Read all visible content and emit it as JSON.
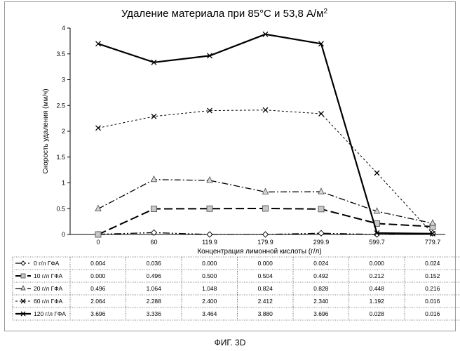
{
  "figure_caption": "ФИГ. 3D",
  "chart_data": {
    "type": "line",
    "title": "Удаление материала при 85°С и 53,8 А/м",
    "title_superscript": "2",
    "xlabel": "Концентрация лимонной кислоты (г/л)",
    "ylabel": "Скорость удаления (мм/ч)",
    "categories": [
      "0",
      "60",
      "119.9",
      "179.9",
      "299.9",
      "599.7",
      "779.7"
    ],
    "ylim": [
      0,
      4
    ],
    "yticks": [
      "0",
      "0.5",
      "1",
      "1.5",
      "2",
      "2.5",
      "3",
      "3.5",
      "4"
    ],
    "grid": false,
    "legend": "data-table-below",
    "series": [
      {
        "name": "0 г/л ГФА",
        "marker": "diamond",
        "dash": "long-dot-dot",
        "color": "#000000",
        "values": [
          0.004,
          0.036,
          0.0,
          0.0,
          0.024,
          0.0,
          0.024
        ],
        "labels": [
          "0.004",
          "0.036",
          "0.000",
          "0.000",
          "0.024",
          "0.000",
          "0.024"
        ]
      },
      {
        "name": "10 г/л ГФА",
        "marker": "square",
        "dash": "long-dash",
        "color": "#000000",
        "values": [
          0.0,
          0.496,
          0.5,
          0.504,
          0.492,
          0.212,
          0.152
        ],
        "labels": [
          "0.000",
          "0.496",
          "0.500",
          "0.504",
          "0.492",
          "0.212",
          "0.152"
        ]
      },
      {
        "name": "20 г/л ГФА",
        "marker": "triangle",
        "dash": "dash-dot",
        "color": "#000000",
        "values": [
          0.496,
          1.064,
          1.048,
          0.824,
          0.828,
          0.448,
          0.216
        ],
        "labels": [
          "0.496",
          "1.064",
          "1.048",
          "0.824",
          "0.828",
          "0.448",
          "0.216"
        ]
      },
      {
        "name": "60 г/л ГФА",
        "marker": "x",
        "dash": "short-dash",
        "color": "#000000",
        "values": [
          2.064,
          2.288,
          2.4,
          2.412,
          2.34,
          1.192,
          0.016
        ],
        "labels": [
          "2.064",
          "2.288",
          "2.400",
          "2.412",
          "2.340",
          "1.192",
          "0.016"
        ]
      },
      {
        "name": "120 г/л ГФА",
        "marker": "x",
        "dash": "solid",
        "color": "#000000",
        "values": [
          3.696,
          3.336,
          3.464,
          3.88,
          3.696,
          0.028,
          0.016
        ],
        "labels": [
          "3.696",
          "3.336",
          "3.464",
          "3.880",
          "3.696",
          "0.028",
          "0.016"
        ]
      }
    ]
  }
}
